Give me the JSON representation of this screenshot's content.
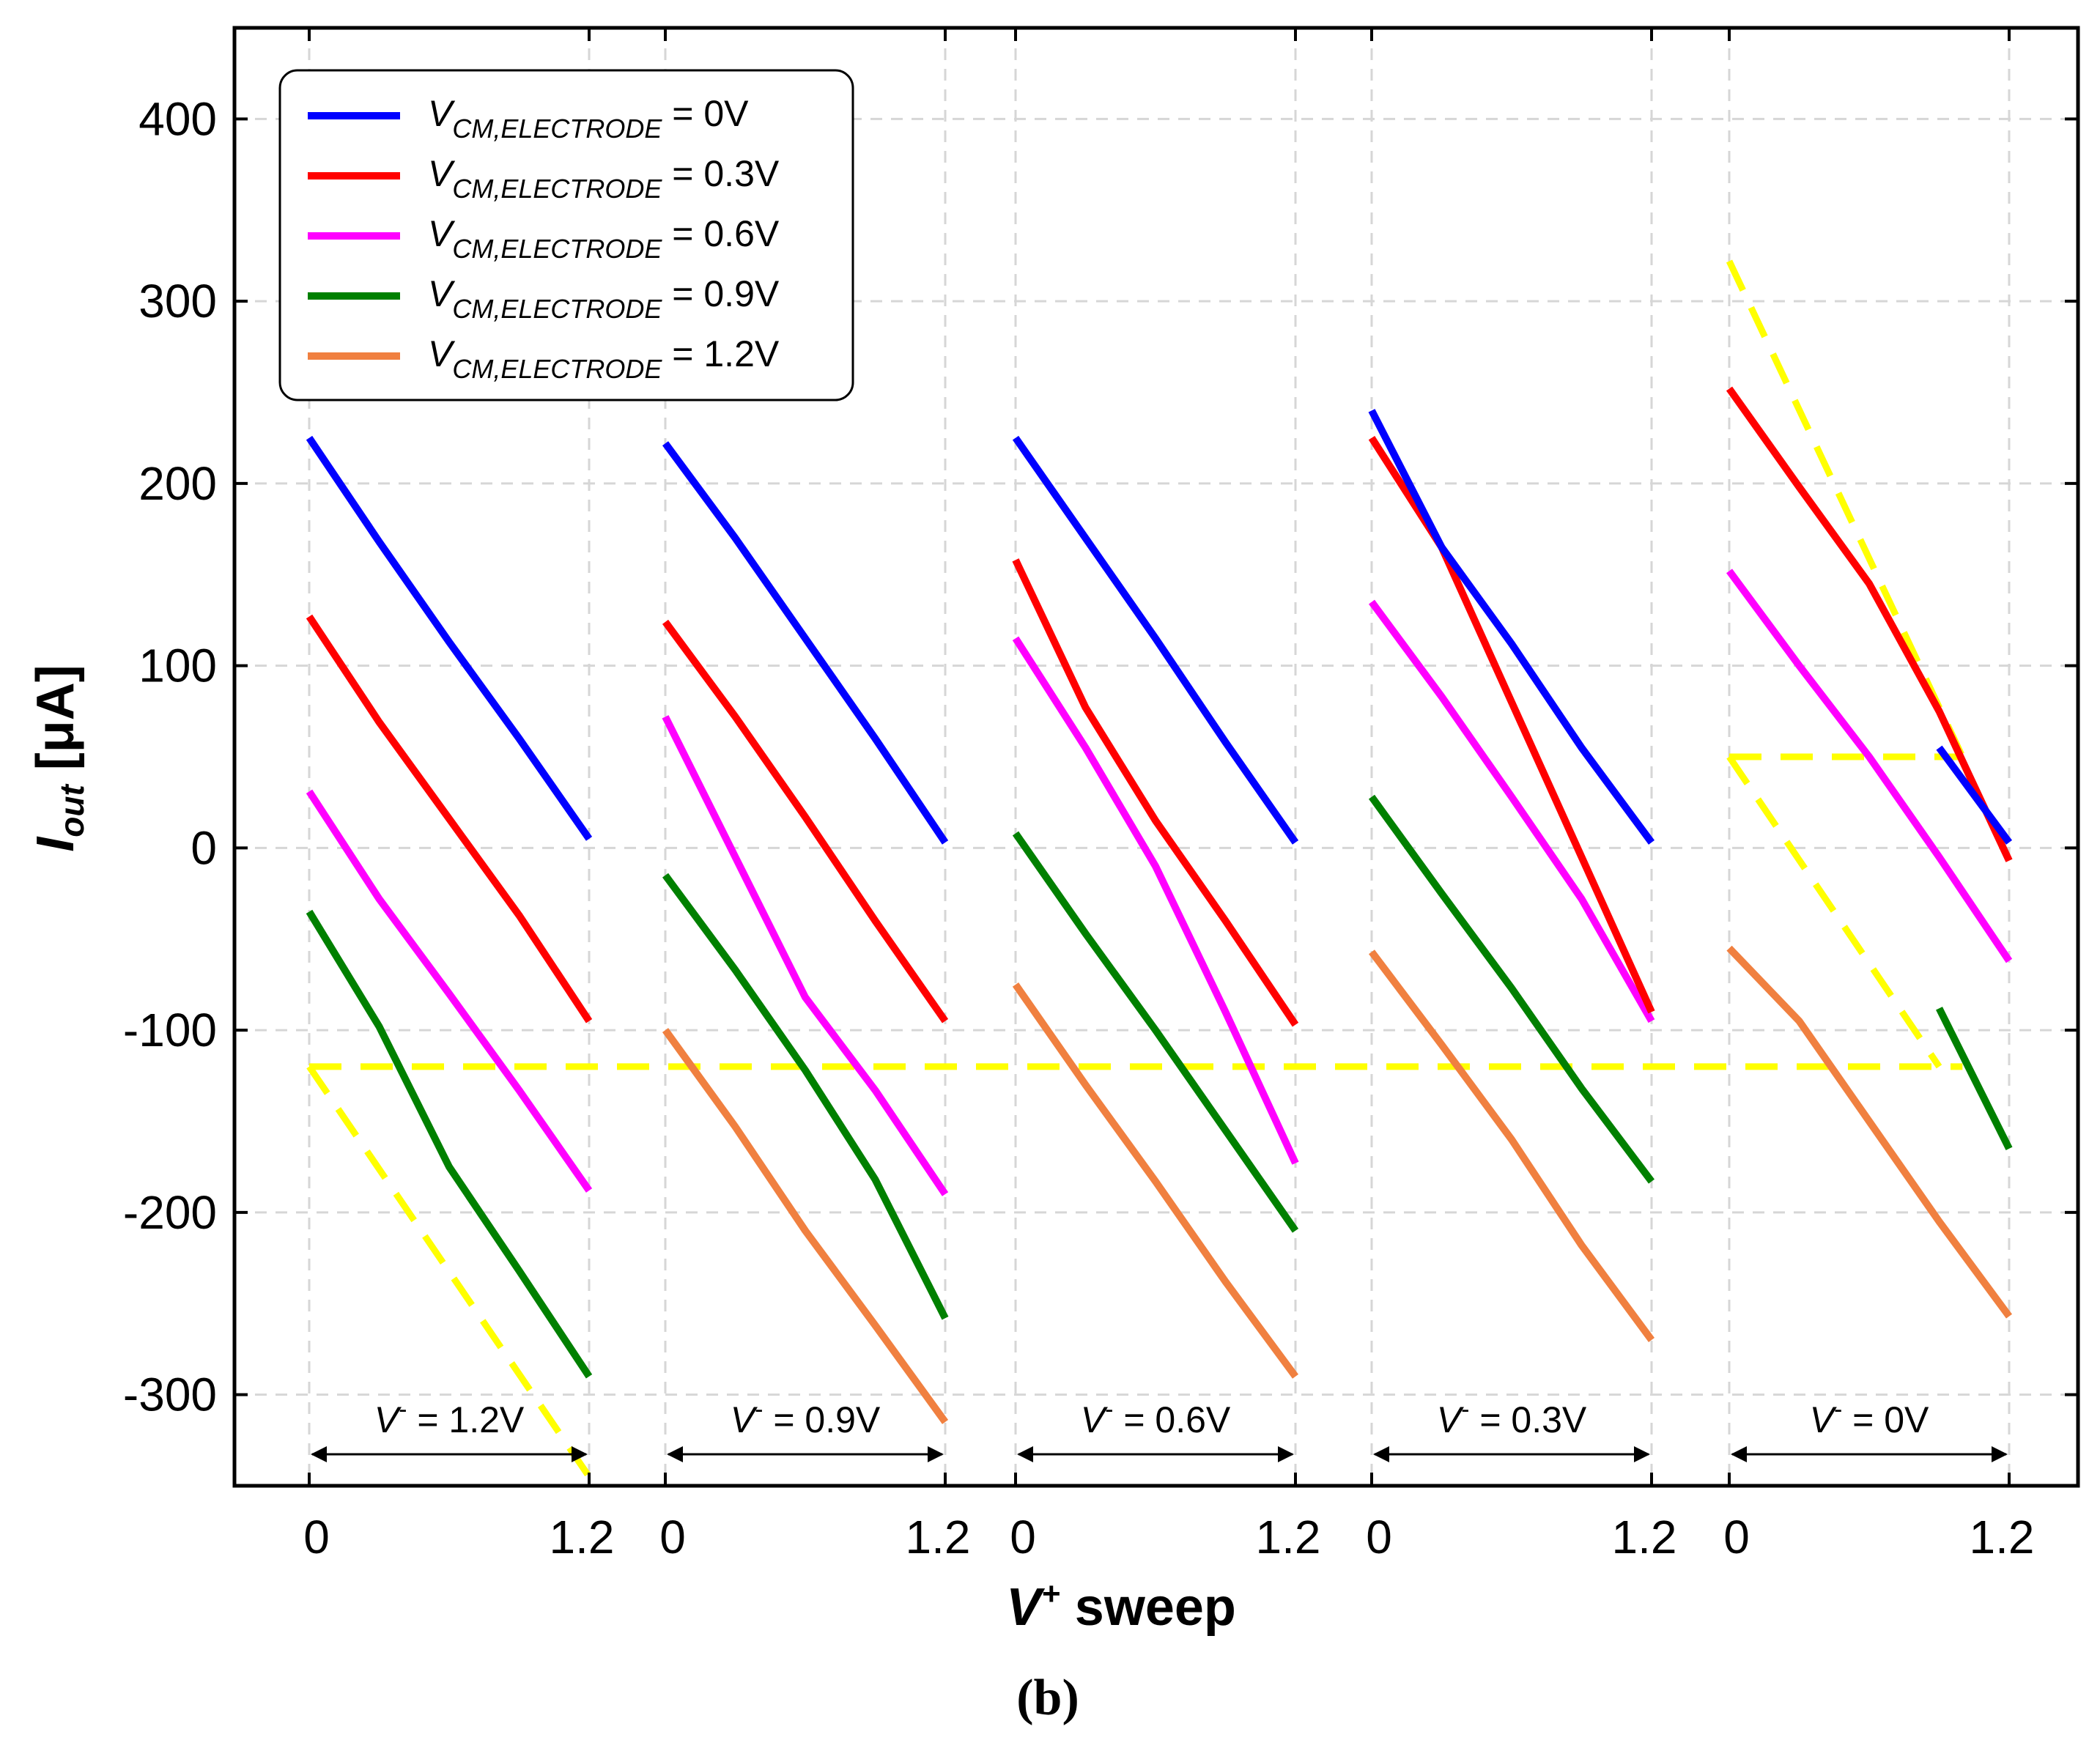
{
  "chart_data": {
    "type": "line",
    "caption": "(b)",
    "xlabel": {
      "main": "V",
      "sup": "+",
      "rest": " sweep"
    },
    "ylabel": {
      "main": "I",
      "sub": "out",
      "rest": "  [μA]"
    },
    "ylim": [
      -350,
      450
    ],
    "yticks": [
      -300,
      -200,
      -100,
      0,
      100,
      200,
      300,
      400
    ],
    "xlim_panel": [
      0,
      1.2
    ],
    "xtick_labels": [
      "0",
      "1.2"
    ],
    "grid": true,
    "legend_position": "top-left",
    "colors": {
      "V0": "#0000ff",
      "V03": "#ff0000",
      "V06": "#ff00ff",
      "V09": "#008000",
      "V12": "#f08040",
      "limit": "#ffff00"
    },
    "series": [
      {
        "key": "V0",
        "label": {
          "main": "V",
          "sub": "CM,ELECTRODE",
          "rest": " = 0V"
        }
      },
      {
        "key": "V03",
        "label": {
          "main": "V",
          "sub": "CM,ELECTRODE",
          "rest": " = 0.3V"
        }
      },
      {
        "key": "V06",
        "label": {
          "main": "V",
          "sub": "CM,ELECTRODE",
          "rest": " = 0.6V"
        }
      },
      {
        "key": "V09",
        "label": {
          "main": "V",
          "sub": "CM,ELECTRODE",
          "rest": " = 0.9V"
        }
      },
      {
        "key": "V12",
        "label": {
          "main": "V",
          "sub": "CM,ELECTRODE",
          "rest": " = 1.2V"
        }
      }
    ],
    "panels": [
      {
        "label": {
          "main": "V",
          "sup": "-",
          "rest": " = 1.2V"
        },
        "lines": {
          "V0": [
            [
              0,
              225
            ],
            [
              0.3,
              168
            ],
            [
              0.6,
              113
            ],
            [
              0.9,
              60
            ],
            [
              1.2,
              5
            ]
          ],
          "V03": [
            [
              0,
              127
            ],
            [
              0.3,
              69
            ],
            [
              0.6,
              16
            ],
            [
              0.9,
              -37
            ],
            [
              1.2,
              -95
            ]
          ],
          "V06": [
            [
              0,
              31
            ],
            [
              0.3,
              -28
            ],
            [
              0.6,
              -80
            ],
            [
              0.9,
              -133
            ],
            [
              1.2,
              -188
            ]
          ],
          "V09": [
            [
              0,
              -35
            ],
            [
              0.3,
              -98
            ],
            [
              0.6,
              -175
            ],
            [
              0.9,
              -232
            ],
            [
              1.2,
              -290
            ]
          ]
        }
      },
      {
        "label": {
          "main": "V",
          "sup": "-",
          "rest": " = 0.9V"
        },
        "lines": {
          "V0": [
            [
              0,
              222
            ],
            [
              0.3,
              170
            ],
            [
              0.6,
              115
            ],
            [
              0.9,
              60
            ],
            [
              1.2,
              3
            ]
          ],
          "V03": [
            [
              0,
              124
            ],
            [
              0.3,
              72
            ],
            [
              0.6,
              17
            ],
            [
              0.9,
              -40
            ],
            [
              1.2,
              -95
            ]
          ],
          "V06": [
            [
              0,
              72
            ],
            [
              0.3,
              -5
            ],
            [
              0.6,
              -82
            ],
            [
              0.9,
              -133
            ],
            [
              1.2,
              -190
            ]
          ],
          "V09": [
            [
              0,
              -15
            ],
            [
              0.3,
              -67
            ],
            [
              0.6,
              -122
            ],
            [
              0.9,
              -182
            ],
            [
              1.2,
              -258
            ]
          ],
          "V12": [
            [
              0,
              -100
            ],
            [
              0.3,
              -153
            ],
            [
              0.6,
              -210
            ],
            [
              0.9,
              -262
            ],
            [
              1.2,
              -315
            ]
          ]
        }
      },
      {
        "label": {
          "main": "V",
          "sup": "-",
          "rest": " = 0.6V"
        },
        "lines": {
          "V0": [
            [
              0,
              225
            ],
            [
              0.3,
              170
            ],
            [
              0.6,
              115
            ],
            [
              0.9,
              58
            ],
            [
              1.2,
              3
            ]
          ],
          "V03": [
            [
              0,
              158
            ],
            [
              0.3,
              77
            ],
            [
              0.6,
              15
            ],
            [
              0.9,
              -40
            ],
            [
              1.2,
              -97
            ]
          ],
          "V06": [
            [
              0,
              115
            ],
            [
              0.3,
              55
            ],
            [
              0.6,
              -10
            ],
            [
              0.9,
              -90
            ],
            [
              1.2,
              -173
            ]
          ],
          "V09": [
            [
              0,
              8
            ],
            [
              0.3,
              -47
            ],
            [
              0.6,
              -100
            ],
            [
              0.9,
              -155
            ],
            [
              1.2,
              -210
            ]
          ],
          "V12": [
            [
              0,
              -75
            ],
            [
              0.3,
              -130
            ],
            [
              0.6,
              -183
            ],
            [
              0.9,
              -238
            ],
            [
              1.2,
              -290
            ]
          ]
        }
      },
      {
        "label": {
          "main": "V",
          "sup": "-",
          "rest": " = 0.3V"
        },
        "lines": {
          "V0": [
            [
              0,
              240
            ],
            [
              0.3,
              165
            ],
            [
              0.6,
              112
            ],
            [
              0.9,
              55
            ],
            [
              1.2,
              3
            ]
          ],
          "V03": [
            [
              0,
              225
            ],
            [
              0.3,
              165
            ],
            [
              0.6,
              80
            ],
            [
              0.9,
              -5
            ],
            [
              1.2,
              -90
            ]
          ],
          "V06": [
            [
              0,
              135
            ],
            [
              0.3,
              83
            ],
            [
              0.6,
              28
            ],
            [
              0.9,
              -28
            ],
            [
              1.2,
              -95
            ]
          ],
          "V09": [
            [
              0,
              28
            ],
            [
              0.3,
              -25
            ],
            [
              0.6,
              -77
            ],
            [
              0.9,
              -132
            ],
            [
              1.2,
              -183
            ]
          ],
          "V12": [
            [
              0,
              -57
            ],
            [
              0.3,
              -108
            ],
            [
              0.6,
              -160
            ],
            [
              0.9,
              -218
            ],
            [
              1.2,
              -270
            ]
          ]
        }
      },
      {
        "label": {
          "main": "V",
          "sup": "-",
          "rest": " = 0V"
        },
        "lines": {
          "V03": [
            [
              0,
              252
            ],
            [
              0.3,
              198
            ],
            [
              0.6,
              145
            ],
            [
              0.9,
              75
            ],
            [
              1.2,
              -7
            ]
          ],
          "V06": [
            [
              0,
              152
            ],
            [
              0.3,
              100
            ],
            [
              0.6,
              50
            ],
            [
              0.9,
              -5
            ],
            [
              1.2,
              -62
            ]
          ],
          "V09": [
            [
              0.9,
              -88
            ],
            [
              1.2,
              -165
            ]
          ],
          "V12": [
            [
              0,
              -55
            ],
            [
              0.3,
              -95
            ],
            [
              0.6,
              -150
            ],
            [
              0.9,
              -205
            ],
            [
              1.2,
              -257
            ]
          ],
          "V0": [
            [
              0.9,
              55
            ],
            [
              1.2,
              3
            ]
          ]
        }
      }
    ],
    "limit_lines": [
      {
        "points": [
          [
            0,
            0,
            -120
          ],
          [
            4,
            1.0,
            -120
          ]
        ]
      },
      {
        "points": [
          [
            0,
            0,
            -120
          ],
          [
            0,
            1.2,
            -345
          ]
        ]
      },
      {
        "points": [
          [
            4,
            0,
            322
          ],
          [
            4,
            1.0,
            50
          ]
        ]
      },
      {
        "points": [
          [
            4,
            0,
            50
          ],
          [
            4,
            1.0,
            50
          ]
        ]
      },
      {
        "points": [
          [
            4,
            0,
            50
          ],
          [
            4,
            0.9,
            -120
          ]
        ]
      }
    ]
  }
}
